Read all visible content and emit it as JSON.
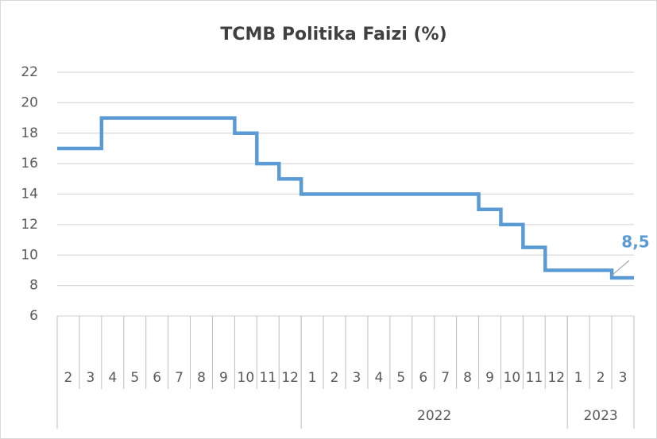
{
  "chart_data": {
    "type": "line",
    "title": "TCMB Politika Faizi (%)",
    "categories": [
      null,
      "2",
      "3",
      "4",
      "5",
      "6",
      "7",
      "8",
      "9",
      "10",
      "11",
      "12",
      "1",
      "2",
      "3",
      "4",
      "5",
      "6",
      "7",
      "8",
      "9",
      "10",
      "11",
      "12",
      "1",
      "2",
      "3"
    ],
    "x_groups": [
      "2022",
      "2023"
    ],
    "series": [
      {
        "name": "TCMB Politika Faizi",
        "color": "#5b9bd5",
        "values": [
          17,
          17,
          19,
          19,
          19,
          19,
          19,
          19,
          18,
          16,
          15,
          14,
          14,
          14,
          14,
          14,
          14,
          14,
          14,
          13,
          12,
          10.5,
          9,
          9,
          9,
          8.5,
          8.5
        ],
        "value_labels": [
          null,
          null,
          null,
          null,
          null,
          null,
          null,
          null,
          null,
          null,
          null,
          null,
          null,
          null,
          null,
          null,
          null,
          null,
          null,
          null,
          null,
          null,
          null,
          null,
          null,
          null,
          "8,5"
        ]
      }
    ],
    "step": true,
    "ylim": [
      6,
      22
    ],
    "yticks": [
      6,
      8,
      10,
      12,
      14,
      16,
      18,
      20,
      22
    ],
    "grid": true
  }
}
